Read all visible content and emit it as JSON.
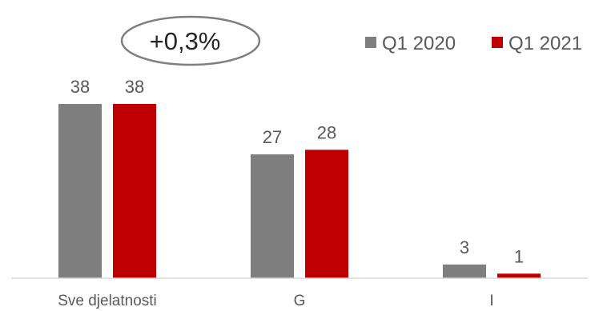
{
  "chart_data": {
    "type": "bar",
    "categories": [
      "Sve djelatnosti",
      "G",
      "I"
    ],
    "series": [
      {
        "name": "Q1 2020",
        "values": [
          38,
          27,
          3
        ],
        "color": "#7f7f7f"
      },
      {
        "name": "Q1 2021",
        "values": [
          38,
          28,
          1
        ],
        "color": "#c00000"
      }
    ],
    "ylim": [
      0,
      38
    ],
    "grid": false,
    "legend": "top-right",
    "annotation": "+0,3%",
    "value_labels": true
  }
}
